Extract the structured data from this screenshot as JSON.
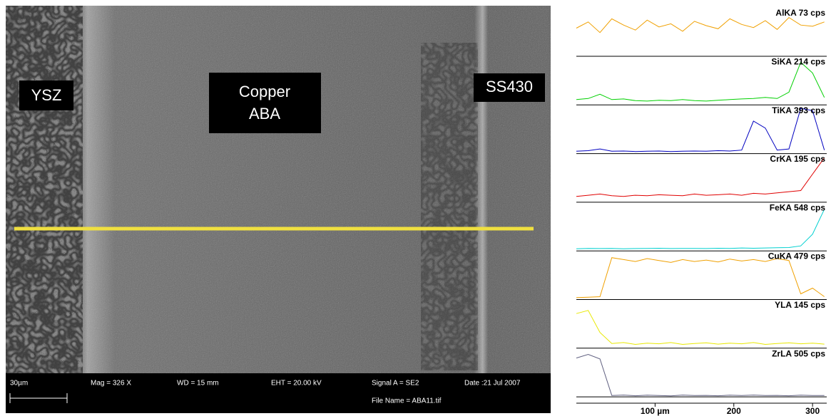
{
  "sem_image": {
    "labels": [
      "YSZ",
      "Copper",
      "ABA",
      "SS430"
    ]
  },
  "info_bar": {
    "scale": "30µm",
    "mag": "Mag =  326 X",
    "wd": "WD =  15 mm",
    "eht": "EHT = 20.00 kV",
    "signal": "Signal A = SE2",
    "date": "Date :21 Jul 2007",
    "file": "File Name = ABA11.tif"
  },
  "chart_data": {
    "type": "line",
    "x": [
      0,
      15,
      30,
      45,
      60,
      75,
      90,
      105,
      120,
      135,
      150,
      165,
      180,
      195,
      210,
      225,
      240,
      255,
      270,
      285,
      300,
      315
    ],
    "xlim": [
      0,
      318
    ],
    "xticks": [
      {
        "value": 100,
        "label": "100 µm"
      },
      200,
      300
    ],
    "series": [
      {
        "name": "AlKA 73 cps",
        "color": "#f0a000",
        "ylim": [
          0,
          73
        ],
        "values": [
          45,
          55,
          38,
          60,
          50,
          42,
          58,
          47,
          52,
          40,
          56,
          49,
          44,
          60,
          51,
          46,
          57,
          43,
          62,
          50,
          48,
          55
        ]
      },
      {
        "name": "SiKA 214 cps",
        "color": "#00d000",
        "ylim": [
          0,
          214
        ],
        "values": [
          25,
          30,
          50,
          25,
          28,
          20,
          18,
          22,
          20,
          25,
          20,
          18,
          22,
          25,
          28,
          30,
          35,
          30,
          60,
          200,
          150,
          35
        ]
      },
      {
        "name": "TiKA 393 cps",
        "color": "#0000c0",
        "ylim": [
          0,
          393
        ],
        "values": [
          20,
          25,
          40,
          20,
          22,
          18,
          20,
          22,
          18,
          20,
          22,
          20,
          25,
          22,
          30,
          280,
          220,
          30,
          40,
          390,
          370,
          30
        ]
      },
      {
        "name": "CrKA 195 cps",
        "color": "#e00000",
        "ylim": [
          0,
          195
        ],
        "values": [
          25,
          30,
          35,
          28,
          25,
          30,
          28,
          32,
          30,
          28,
          35,
          30,
          32,
          35,
          30,
          38,
          35,
          40,
          45,
          50,
          120,
          190
        ]
      },
      {
        "name": "FeKA 548 cps",
        "color": "#00d0d0",
        "ylim": [
          0,
          548
        ],
        "values": [
          25,
          30,
          28,
          30,
          25,
          28,
          30,
          32,
          28,
          30,
          30,
          28,
          32,
          30,
          35,
          32,
          35,
          38,
          40,
          60,
          200,
          500
        ]
      },
      {
        "name": "CuKA 479 cps",
        "color": "#f0a000",
        "ylim": [
          0,
          479
        ],
        "values": [
          20,
          25,
          30,
          440,
          420,
          400,
          430,
          410,
          390,
          420,
          400,
          415,
          395,
          425,
          405,
          420,
          400,
          430,
          410,
          60,
          120,
          30
        ]
      },
      {
        "name": "YLA 145 cps",
        "color": "#e8e800",
        "ylim": [
          0,
          145
        ],
        "values": [
          110,
          120,
          50,
          15,
          18,
          12,
          16,
          14,
          18,
          12,
          15,
          17,
          13,
          16,
          14,
          18,
          12,
          15,
          17,
          14,
          16,
          13
        ]
      },
      {
        "name": "ZrLA 505 cps",
        "color": "#606080",
        "ylim": [
          0,
          505
        ],
        "values": [
          430,
          470,
          420,
          15,
          20,
          12,
          18,
          15,
          10,
          20,
          14,
          16,
          12,
          18,
          15,
          20,
          14,
          16,
          12,
          18,
          15,
          14
        ]
      }
    ]
  }
}
